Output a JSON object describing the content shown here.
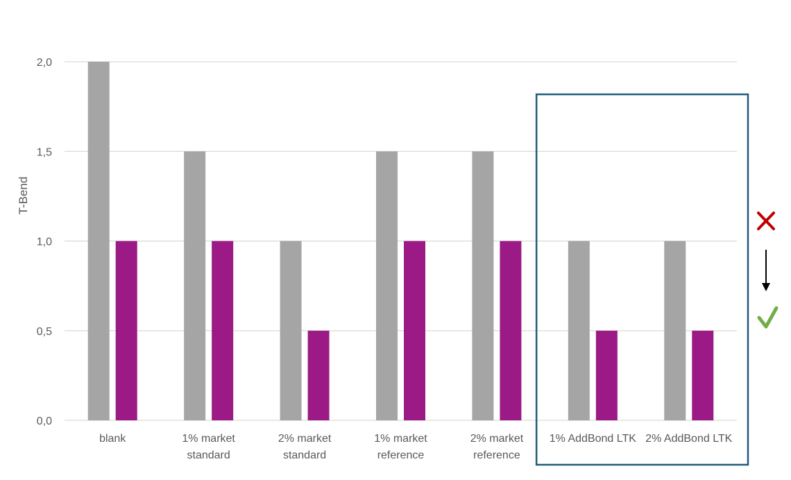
{
  "chart_data": {
    "type": "bar",
    "title": "",
    "xlabel": "",
    "ylabel": "T-Bend",
    "ylim": [
      0,
      2
    ],
    "yticks": [
      "0,0",
      "0,5",
      "1,0",
      "1,5",
      "2,0"
    ],
    "ytick_values": [
      0,
      0.5,
      1.0,
      1.5,
      2.0
    ],
    "grid": true,
    "legend": "none",
    "categories": [
      [
        "blank"
      ],
      [
        "1% market",
        "standard"
      ],
      [
        "2% market",
        "standard"
      ],
      [
        "1% market",
        "reference"
      ],
      [
        "2% market",
        "reference"
      ],
      [
        "1% AddBond LTK"
      ],
      [
        "2% AddBond LTK"
      ]
    ],
    "series": [
      {
        "values": [
          2.0,
          1.5,
          1.0,
          1.5,
          1.5,
          1.0,
          1.0
        ],
        "color": "#a5a5a5"
      },
      {
        "values": [
          1.0,
          1.0,
          0.5,
          1.0,
          1.0,
          0.5,
          0.5
        ],
        "color": "#9c1a86"
      }
    ],
    "highlight_box": {
      "categories": [
        "1% AddBond LTK",
        "2% AddBond LTK"
      ],
      "color": "#1f5c7a"
    }
  },
  "annotations": {
    "cross_icon": "red-cross-icon",
    "cross_color": "#c00000",
    "arrow_icon": "down-arrow-icon",
    "arrow_color": "#000000",
    "check_icon": "green-check-icon",
    "check_color": "#70ad47"
  }
}
